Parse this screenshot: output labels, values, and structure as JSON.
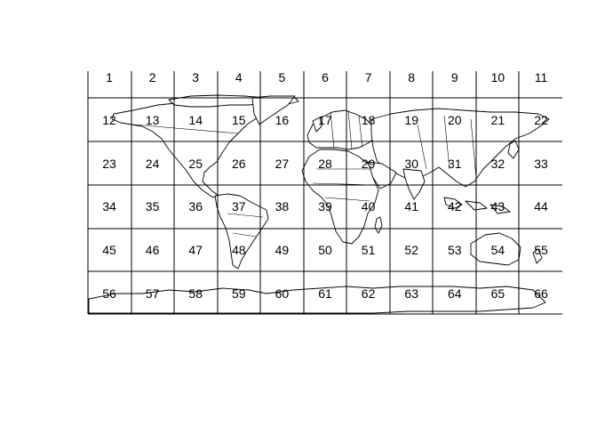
{
  "map": {
    "grid": {
      "columns": 11,
      "rows": 6
    },
    "cell_labels": [
      "1",
      "2",
      "3",
      "4",
      "5",
      "6",
      "7",
      "8",
      "9",
      "10",
      "11",
      "12",
      "13",
      "14",
      "15",
      "16",
      "17",
      "18",
      "19",
      "20",
      "21",
      "22",
      "23",
      "24",
      "25",
      "26",
      "27",
      "28",
      "29",
      "30",
      "31",
      "32",
      "33",
      "34",
      "35",
      "36",
      "37",
      "38",
      "39",
      "40",
      "41",
      "42",
      "43",
      "44",
      "45",
      "46",
      "47",
      "48",
      "49",
      "50",
      "51",
      "52",
      "53",
      "54",
      "55",
      "56",
      "57",
      "58",
      "59",
      "60",
      "61",
      "62",
      "63",
      "64",
      "65",
      "66"
    ],
    "colors": {
      "background": "#ffffff",
      "land_fill": "#ffffff",
      "line": "#000000",
      "text": "#000000"
    },
    "layers": [
      "world-coastlines",
      "country-borders",
      "grid-cells"
    ]
  }
}
